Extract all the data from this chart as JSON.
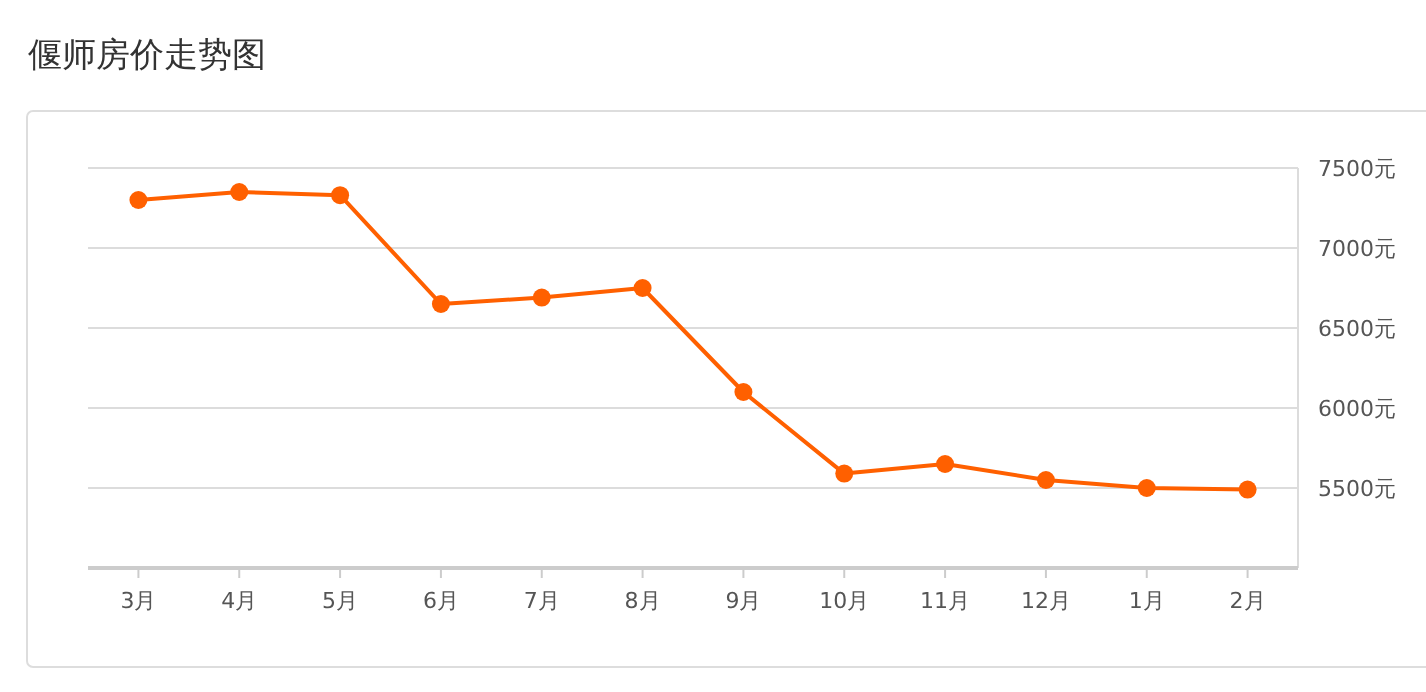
{
  "chart_data": {
    "type": "line",
    "title": "偃师房价走势图",
    "categories": [
      "3月",
      "4月",
      "5月",
      "6月",
      "7月",
      "8月",
      "9月",
      "10月",
      "11月",
      "12月",
      "1月",
      "2月"
    ],
    "series": [
      {
        "color": "#ff6000",
        "values": [
          7300,
          7350,
          7330,
          6650,
          6690,
          6750,
          6100,
          5590,
          5650,
          5550,
          5500,
          5490
        ]
      }
    ],
    "ylim": [
      5000,
      7500
    ],
    "yticks": [
      {
        "value": 5500,
        "label": "5500元"
      },
      {
        "value": 6000,
        "label": "6000元"
      },
      {
        "value": 6500,
        "label": "6500元"
      },
      {
        "value": 7000,
        "label": "7000元"
      },
      {
        "value": 7500,
        "label": "7500元"
      }
    ],
    "grid": "y",
    "marker": "circle",
    "line_style": "solid"
  }
}
